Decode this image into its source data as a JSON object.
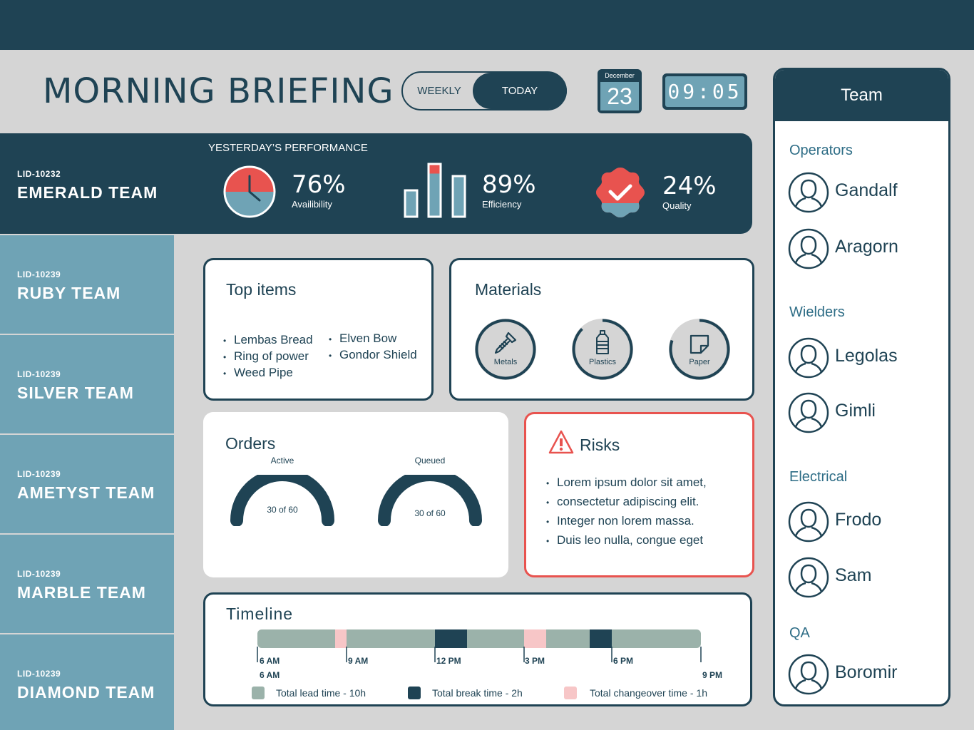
{
  "header": {
    "title": "MORNING BRIEFING",
    "toggle": {
      "weekly": "WEEKLY",
      "today": "TODAY",
      "selected": "TODAY"
    },
    "calendar": {
      "month": "December",
      "day": "23"
    },
    "clock": "09:05"
  },
  "performance": {
    "heading": "YESTERDAY’S PERFORMANCE",
    "team_id": "LID-10232",
    "team_name": "EMERALD TEAM",
    "availability": {
      "value": "76%",
      "label": "Availibility"
    },
    "efficiency": {
      "value": "89%",
      "label": "Efficiency"
    },
    "quality": {
      "value": "24%",
      "label": "Quality"
    }
  },
  "teams": [
    {
      "id": "LID-10239",
      "name": "RUBY TEAM"
    },
    {
      "id": "LID-10239",
      "name": "SILVER TEAM"
    },
    {
      "id": "LID-10239",
      "name": "AMETYST TEAM"
    },
    {
      "id": "LID-10239",
      "name": "MARBLE TEAM"
    },
    {
      "id": "LID-10239",
      "name": "DIAMOND TEAM"
    }
  ],
  "top_items": {
    "title": "Top items",
    "col1": [
      "Lembas Bread",
      "Ring of power",
      "Weed Pipe"
    ],
    "col2": [
      "Elven Bow",
      "Gondor Shield"
    ]
  },
  "materials": {
    "title": "Materials",
    "items": [
      {
        "label": "Metals",
        "icon": "screw-icon"
      },
      {
        "label": "Plastics",
        "icon": "bottle-icon"
      },
      {
        "label": "Paper",
        "icon": "paper-icon"
      }
    ]
  },
  "orders": {
    "title": "Orders",
    "active": {
      "label": "Active",
      "text": "30 of 60",
      "fraction": 0.5
    },
    "queued": {
      "label": "Queued",
      "text": "30 of 60",
      "fraction": 0.5
    }
  },
  "risks": {
    "title": "Risks",
    "items": [
      "Lorem ipsum dolor sit amet,",
      "consectetur adipiscing elit.",
      "Integer non lorem massa.",
      "Duis leo nulla, congue eget"
    ]
  },
  "timeline": {
    "title": "Timeline",
    "ticks": [
      "6 AM",
      "9 AM",
      "12 PM",
      "3 PM",
      "6 PM"
    ],
    "start_label": "6 AM",
    "end_label": "9 PM",
    "legend": [
      {
        "label": "Total lead time - 10h",
        "color": "#9bb2aa"
      },
      {
        "label": "Total break time - 2h",
        "color": "#1f4354"
      },
      {
        "label": "Total changeover time - 1h",
        "color": "#f7c6c7"
      }
    ]
  },
  "team_panel": {
    "title": "Team",
    "groups": [
      {
        "name": "Operators",
        "members": [
          "Gandalf",
          "Aragorn"
        ]
      },
      {
        "name": "Wielders",
        "members": [
          "Legolas",
          "Gimli"
        ]
      },
      {
        "name": "Electrical",
        "members": [
          "Frodo",
          "Sam"
        ]
      },
      {
        "name": "QA",
        "members": [
          "Boromir"
        ]
      }
    ]
  },
  "colors": {
    "navy": "#1f4354",
    "teal": "#6fa3b5",
    "red": "#e8534f",
    "sage": "#9bb2aa",
    "pink": "#f7c6c7"
  }
}
